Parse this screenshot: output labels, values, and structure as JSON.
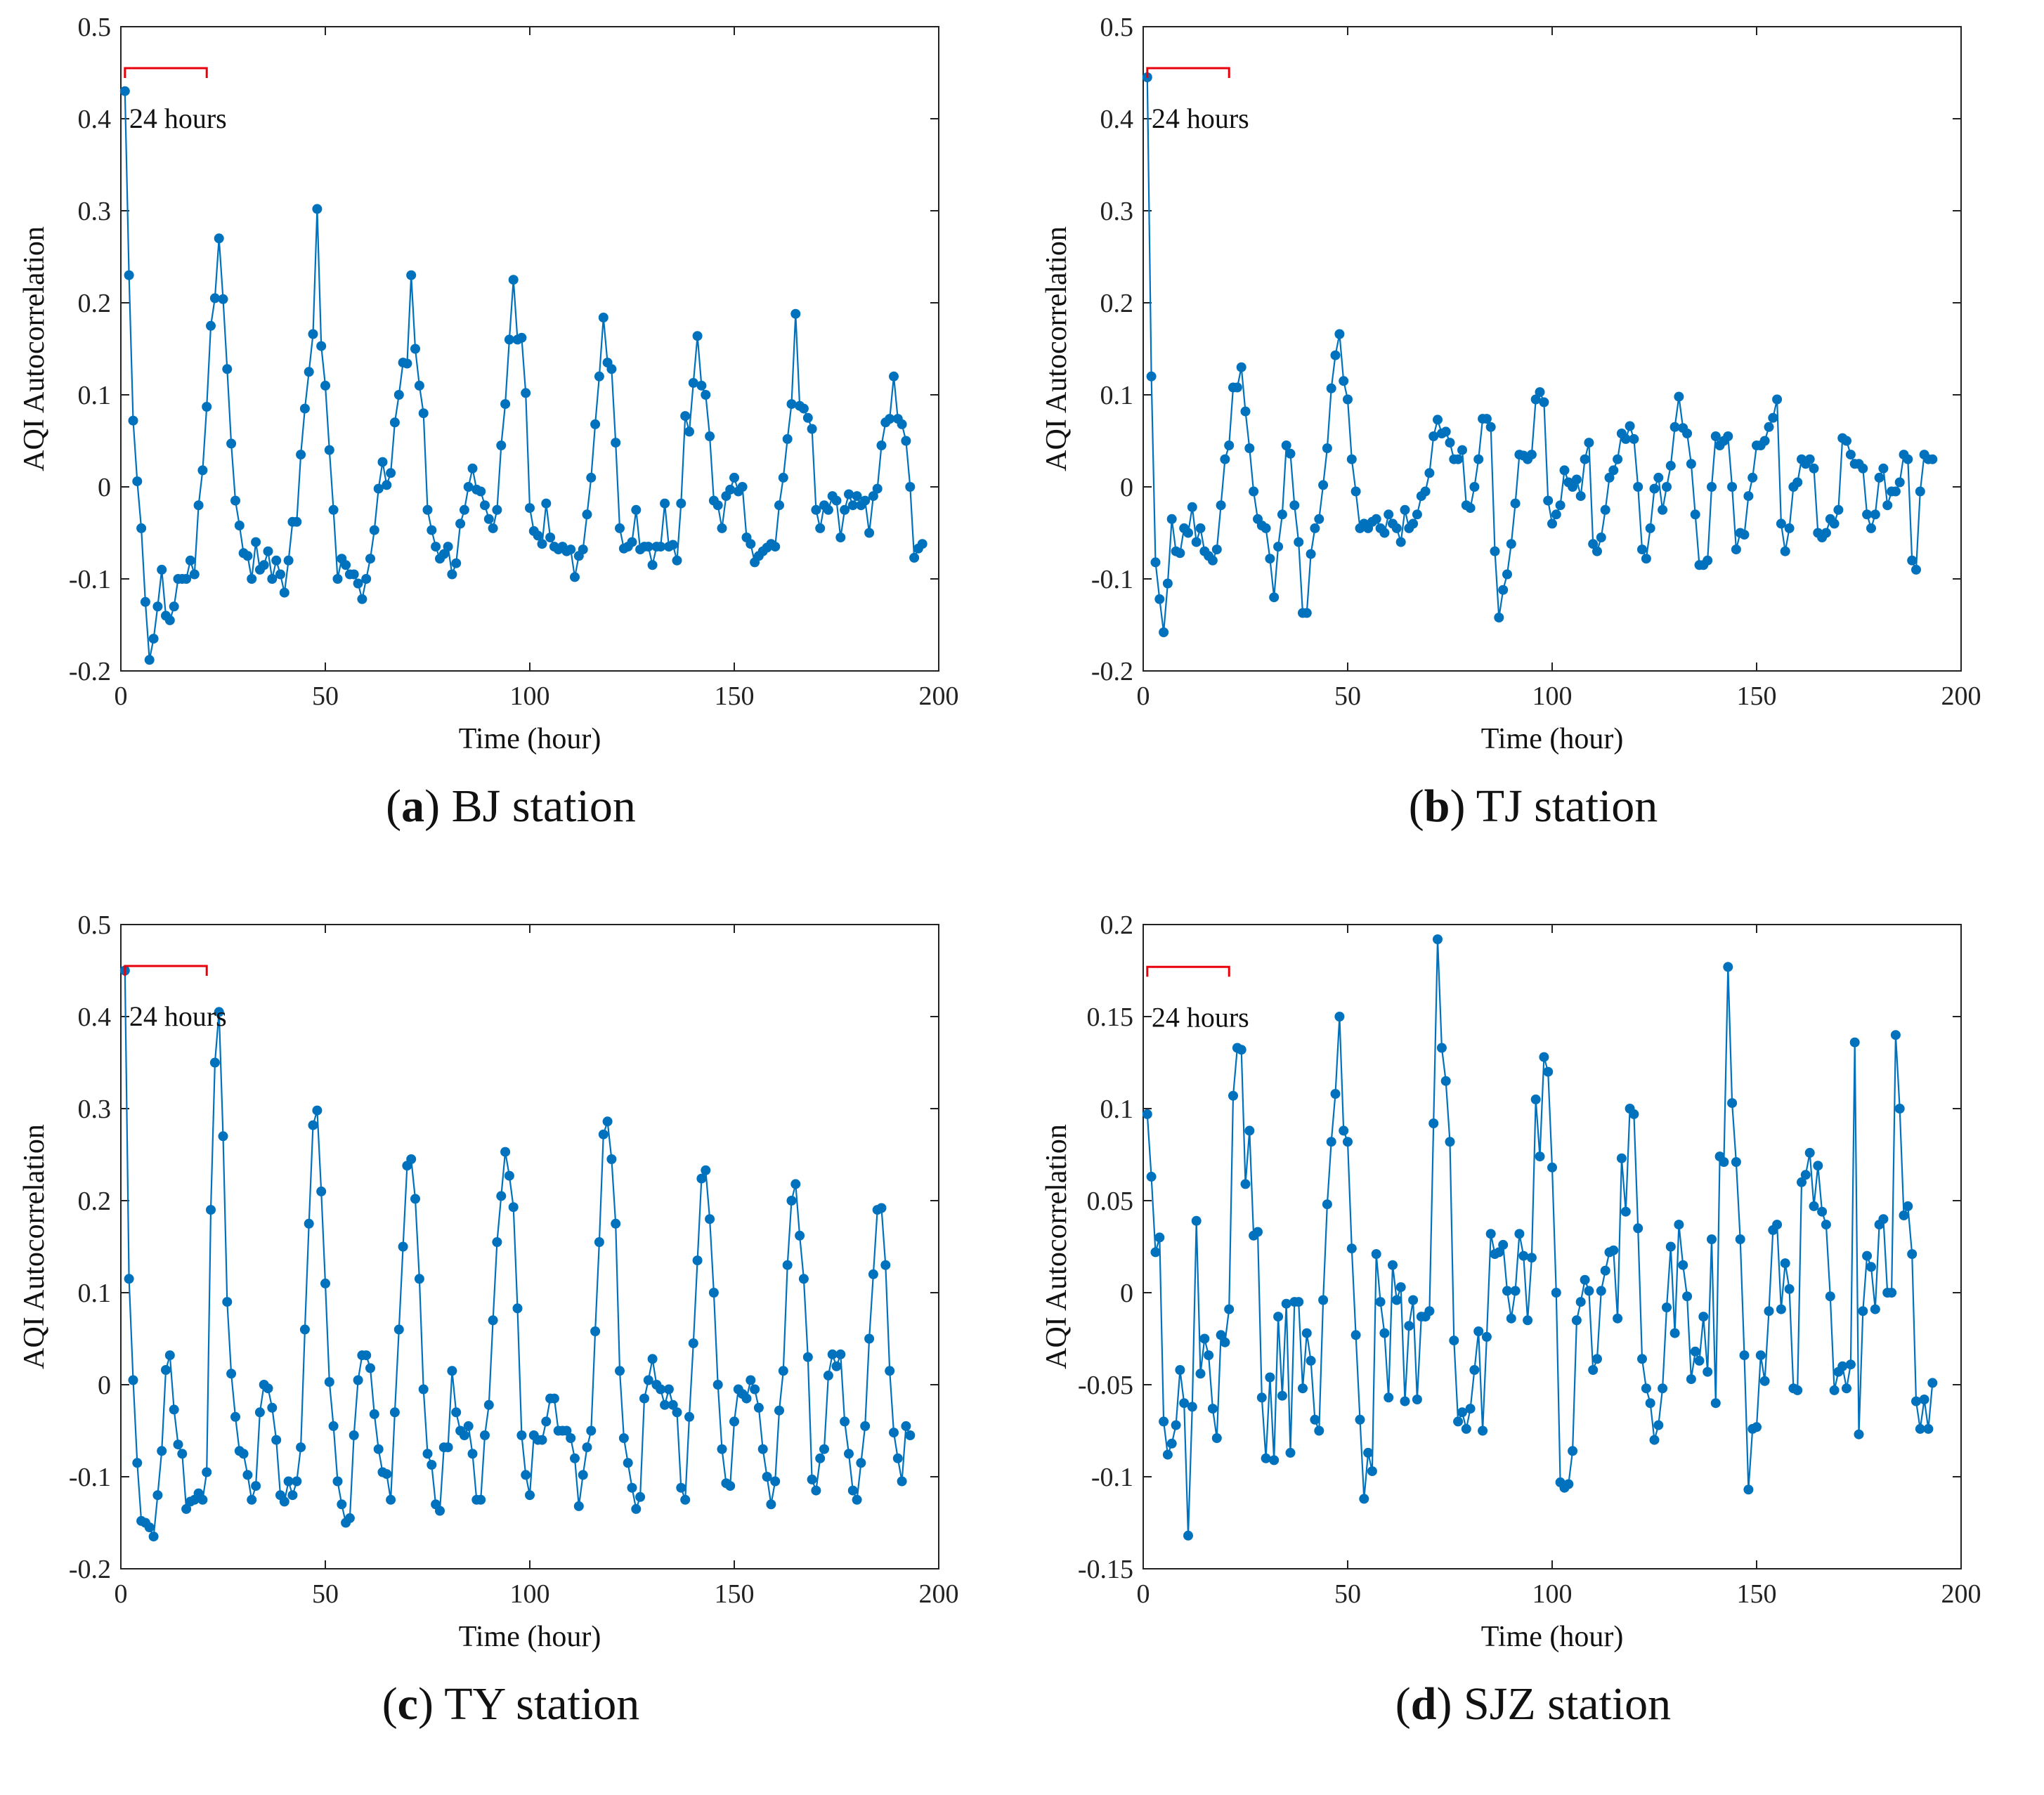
{
  "colors": {
    "series": "#0072BD",
    "annotation": "#E8000B",
    "axis": "#222222"
  },
  "chart_data": [
    {
      "type": "line",
      "caption": {
        "label": "a",
        "text": "BJ station"
      },
      "xlabel": "Time (hour)",
      "ylabel": "AQI Autocorrelation",
      "xlim": [
        0,
        200
      ],
      "ylim": [
        -0.2,
        0.5
      ],
      "xticks": [
        "0",
        "50",
        "100",
        "150",
        "200"
      ],
      "yticks": [
        "-0.2",
        "-0.1",
        "0",
        "0.1",
        "0.2",
        "0.3",
        "0.4",
        "0.5"
      ],
      "annotation": {
        "text": "24  hours",
        "from_x": 1,
        "to_x": 21,
        "y": 0.455
      },
      "series": [
        {
          "values": [
            0.43,
            0.23,
            0.072,
            0.006,
            -0.045,
            -0.125,
            -0.188,
            -0.165,
            -0.13,
            -0.09,
            -0.14,
            -0.145,
            -0.13,
            -0.1,
            -0.1,
            -0.1,
            -0.08,
            -0.095,
            -0.02,
            0.018,
            0.087,
            0.175,
            0.205,
            0.27,
            0.204,
            0.128,
            0.047,
            -0.015,
            -0.042,
            -0.072,
            -0.075,
            -0.1,
            -0.06,
            -0.09,
            -0.085,
            -0.07,
            -0.1,
            -0.08,
            -0.095,
            -0.115,
            -0.08,
            -0.038,
            -0.038,
            0.035,
            0.085,
            0.125,
            0.166,
            0.302,
            0.153,
            0.11,
            0.04,
            -0.025,
            -0.1,
            -0.078,
            -0.085,
            -0.095,
            -0.095,
            -0.105,
            -0.122,
            -0.1,
            -0.078,
            -0.047,
            -0.002,
            0.027,
            0.002,
            0.015,
            0.07,
            0.1,
            0.135,
            0.134,
            0.23,
            0.15,
            0.11,
            0.08,
            -0.025,
            -0.047,
            -0.065,
            -0.078,
            -0.073,
            -0.065,
            -0.095,
            -0.083,
            -0.04,
            -0.025,
            0.0,
            0.02,
            -0.003,
            -0.005,
            -0.02,
            -0.035,
            -0.045,
            -0.025,
            0.045,
            0.09,
            0.16,
            0.225,
            0.16,
            0.162,
            0.102,
            -0.023,
            -0.048,
            -0.053,
            -0.062,
            -0.018,
            -0.055,
            -0.065,
            -0.068,
            -0.065,
            -0.07,
            -0.068,
            -0.098,
            -0.075,
            -0.068,
            -0.03,
            0.01,
            0.068,
            0.12,
            0.184,
            0.135,
            0.128,
            0.048,
            -0.045,
            -0.067,
            -0.065,
            -0.06,
            -0.025,
            -0.068,
            -0.065,
            -0.065,
            -0.085,
            -0.065,
            -0.065,
            -0.018,
            -0.065,
            -0.063,
            -0.08,
            -0.018,
            0.077,
            0.06,
            0.113,
            0.164,
            0.11,
            0.1,
            0.055,
            -0.015,
            -0.02,
            -0.045,
            -0.01,
            -0.003,
            0.01,
            -0.005,
            0.0,
            -0.055,
            -0.062,
            -0.082,
            -0.075,
            -0.07,
            -0.066,
            -0.062,
            -0.065,
            -0.02,
            0.01,
            0.052,
            0.09,
            0.188,
            0.088,
            0.085,
            0.075,
            0.063,
            -0.025,
            -0.045,
            -0.02,
            -0.025,
            -0.01,
            -0.015,
            -0.055,
            -0.025,
            -0.008,
            -0.02,
            -0.01,
            -0.02,
            -0.015,
            -0.05,
            -0.01,
            -0.002,
            0.045,
            0.07,
            0.074,
            0.12,
            0.074,
            0.068,
            0.05,
            0.0,
            -0.077,
            -0.067,
            -0.062
          ]
        }
      ]
    },
    {
      "type": "line",
      "caption": {
        "label": "b",
        "text": "TJ station"
      },
      "xlabel": "Time (hour)",
      "ylabel": "AQI Autocorrelation",
      "xlim": [
        0,
        200
      ],
      "ylim": [
        -0.2,
        0.5
      ],
      "xticks": [
        "0",
        "50",
        "100",
        "150",
        "200"
      ],
      "yticks": [
        "-0.2",
        "-0.1",
        "0",
        "0.1",
        "0.2",
        "0.3",
        "0.4",
        "0.5"
      ],
      "annotation": {
        "text": "24  hours",
        "from_x": 1,
        "to_x": 21,
        "y": 0.455
      },
      "series": [
        {
          "values": [
            0.445,
            0.12,
            -0.082,
            -0.122,
            -0.158,
            -0.105,
            -0.035,
            -0.07,
            -0.072,
            -0.045,
            -0.05,
            -0.022,
            -0.06,
            -0.045,
            -0.07,
            -0.075,
            -0.08,
            -0.068,
            -0.02,
            0.03,
            0.045,
            0.108,
            0.108,
            0.13,
            0.082,
            0.042,
            -0.005,
            -0.035,
            -0.042,
            -0.045,
            -0.078,
            -0.12,
            -0.065,
            -0.03,
            0.045,
            0.036,
            -0.02,
            -0.06,
            -0.137,
            -0.137,
            -0.073,
            -0.045,
            -0.035,
            0.002,
            0.042,
            0.107,
            0.143,
            0.166,
            0.115,
            0.095,
            0.03,
            -0.005,
            -0.045,
            -0.04,
            -0.045,
            -0.038,
            -0.035,
            -0.045,
            -0.05,
            -0.03,
            -0.04,
            -0.045,
            -0.06,
            -0.025,
            -0.045,
            -0.04,
            -0.03,
            -0.01,
            -0.005,
            0.015,
            0.055,
            0.073,
            0.058,
            0.06,
            0.048,
            0.03,
            0.03,
            0.04,
            -0.02,
            -0.023,
            0.0,
            0.03,
            0.074,
            0.074,
            0.065,
            -0.07,
            -0.142,
            -0.112,
            -0.095,
            -0.062,
            -0.018,
            0.035,
            0.034,
            0.03,
            0.035,
            0.095,
            0.103,
            0.092,
            -0.015,
            -0.04,
            -0.03,
            -0.02,
            0.018,
            0.005,
            0.0,
            0.008,
            -0.01,
            0.03,
            0.048,
            -0.062,
            -0.07,
            -0.055,
            -0.025,
            0.01,
            0.018,
            0.03,
            0.058,
            0.052,
            0.066,
            0.052,
            0.0,
            -0.068,
            -0.078,
            -0.045,
            -0.002,
            0.01,
            -0.025,
            0.0,
            0.023,
            0.065,
            0.098,
            0.064,
            0.058,
            0.025,
            -0.03,
            -0.085,
            -0.085,
            -0.08,
            0.0,
            0.055,
            0.045,
            0.05,
            0.055,
            0.0,
            -0.068,
            -0.05,
            -0.052,
            -0.01,
            0.01,
            0.045,
            0.045,
            0.05,
            0.065,
            0.075,
            0.095,
            -0.04,
            -0.07,
            -0.045,
            0.0,
            0.005,
            0.03,
            0.025,
            0.03,
            0.02,
            -0.05,
            -0.055,
            -0.05,
            -0.035,
            -0.04,
            -0.025,
            0.053,
            0.05,
            0.035,
            0.025,
            0.025,
            0.02,
            -0.03,
            -0.045,
            -0.03,
            0.01,
            0.02,
            -0.02,
            -0.005,
            -0.005,
            0.005,
            0.035,
            0.03,
            -0.08,
            -0.09,
            -0.005,
            0.035,
            0.03,
            0.03
          ]
        }
      ]
    },
    {
      "type": "line",
      "caption": {
        "label": "c",
        "text": "TY station"
      },
      "xlabel": "Time (hour)",
      "ylabel": "AQI Autocorrelation",
      "xlim": [
        0,
        200
      ],
      "ylim": [
        -0.2,
        0.5
      ],
      "xticks": [
        "0",
        "50",
        "100",
        "150",
        "200"
      ],
      "yticks": [
        "-0.2",
        "-0.1",
        "0",
        "0.1",
        "0.2",
        "0.3",
        "0.4",
        "0.5"
      ],
      "annotation": {
        "text": "24  hours",
        "from_x": 1,
        "to_x": 21,
        "y": 0.455
      },
      "series": [
        {
          "values": [
            0.45,
            0.115,
            0.005,
            -0.085,
            -0.148,
            -0.15,
            -0.155,
            -0.165,
            -0.12,
            -0.072,
            0.016,
            0.032,
            -0.027,
            -0.065,
            -0.075,
            -0.135,
            -0.127,
            -0.125,
            -0.118,
            -0.125,
            -0.095,
            0.19,
            0.35,
            0.405,
            0.27,
            0.09,
            0.012,
            -0.035,
            -0.072,
            -0.075,
            -0.098,
            -0.125,
            -0.11,
            -0.03,
            0.0,
            -0.004,
            -0.025,
            -0.06,
            -0.12,
            -0.127,
            -0.105,
            -0.12,
            -0.105,
            -0.068,
            0.06,
            0.175,
            0.282,
            0.298,
            0.21,
            0.11,
            0.003,
            -0.045,
            -0.105,
            -0.13,
            -0.15,
            -0.145,
            -0.055,
            0.005,
            0.032,
            0.032,
            0.018,
            -0.032,
            -0.07,
            -0.095,
            -0.097,
            -0.125,
            -0.03,
            0.06,
            0.15,
            0.238,
            0.245,
            0.202,
            0.115,
            -0.005,
            -0.075,
            -0.087,
            -0.13,
            -0.137,
            -0.068,
            -0.068,
            0.015,
            -0.03,
            -0.05,
            -0.055,
            -0.045,
            -0.075,
            -0.125,
            -0.125,
            -0.055,
            -0.022,
            0.07,
            0.155,
            0.205,
            0.253,
            0.227,
            0.193,
            0.083,
            -0.055,
            -0.098,
            -0.12,
            -0.055,
            -0.06,
            -0.06,
            -0.04,
            -0.015,
            -0.015,
            -0.05,
            -0.05,
            -0.05,
            -0.058,
            -0.08,
            -0.132,
            -0.098,
            -0.068,
            -0.05,
            0.058,
            0.155,
            0.272,
            0.286,
            0.245,
            0.175,
            0.015,
            -0.058,
            -0.085,
            -0.112,
            -0.135,
            -0.122,
            -0.015,
            0.005,
            0.028,
            0.0,
            -0.005,
            -0.022,
            -0.005,
            -0.022,
            -0.03,
            -0.112,
            -0.125,
            -0.035,
            0.045,
            0.135,
            0.224,
            0.233,
            0.18,
            0.1,
            0.0,
            -0.07,
            -0.107,
            -0.11,
            -0.04,
            -0.005,
            -0.01,
            -0.015,
            0.005,
            -0.005,
            -0.025,
            -0.07,
            -0.1,
            -0.13,
            -0.105,
            -0.028,
            0.015,
            0.13,
            0.2,
            0.218,
            0.162,
            0.115,
            0.03,
            -0.103,
            -0.115,
            -0.08,
            -0.07,
            0.01,
            0.033,
            0.02,
            0.033,
            -0.04,
            -0.075,
            -0.115,
            -0.125,
            -0.085,
            -0.045,
            0.05,
            0.12,
            0.19,
            0.192,
            0.13,
            0.015,
            -0.052,
            -0.08,
            -0.105,
            -0.045,
            -0.055
          ]
        }
      ]
    },
    {
      "type": "line",
      "caption": {
        "label": "d",
        "text": "SJZ station"
      },
      "xlabel": "Time (hour)",
      "ylabel": "AQI Autocorrelation",
      "xlim": [
        0,
        200
      ],
      "ylim": [
        -0.15,
        0.2
      ],
      "xticks": [
        "0",
        "50",
        "100",
        "150",
        "200"
      ],
      "yticks": [
        "-0.15",
        "-0.1",
        "-0.05",
        "0",
        "0.05",
        "0.1",
        "0.15",
        "0.2"
      ],
      "annotation": {
        "text": "24  hours",
        "from_x": 1,
        "to_x": 21,
        "y": 0.177
      },
      "series": [
        {
          "values": [
            0.097,
            0.063,
            0.022,
            0.03,
            -0.07,
            -0.088,
            -0.082,
            -0.072,
            -0.042,
            -0.06,
            -0.132,
            -0.062,
            0.039,
            -0.044,
            -0.025,
            -0.034,
            -0.063,
            -0.079,
            -0.023,
            -0.027,
            -0.009,
            0.107,
            0.133,
            0.132,
            0.059,
            0.088,
            0.031,
            0.033,
            -0.057,
            -0.09,
            -0.046,
            -0.091,
            -0.013,
            -0.056,
            -0.006,
            -0.087,
            -0.005,
            -0.005,
            -0.052,
            -0.022,
            -0.037,
            -0.069,
            -0.075,
            -0.004,
            0.048,
            0.082,
            0.108,
            0.15,
            0.088,
            0.082,
            0.024,
            -0.023,
            -0.069,
            -0.112,
            -0.087,
            -0.097,
            0.021,
            -0.005,
            -0.022,
            -0.057,
            0.015,
            -0.004,
            0.003,
            -0.059,
            -0.018,
            -0.004,
            -0.058,
            -0.013,
            -0.013,
            -0.01,
            0.092,
            0.192,
            0.133,
            0.115,
            0.082,
            -0.026,
            -0.07,
            -0.065,
            -0.074,
            -0.063,
            -0.042,
            -0.021,
            -0.075,
            -0.024,
            0.032,
            0.021,
            0.022,
            0.026,
            0.001,
            -0.014,
            0.001,
            0.032,
            0.02,
            -0.015,
            0.019,
            0.105,
            0.074,
            0.128,
            0.12,
            0.068,
            0.0,
            -0.103,
            -0.106,
            -0.104,
            -0.086,
            -0.015,
            -0.005,
            0.007,
            0.001,
            -0.042,
            -0.036,
            0.001,
            0.012,
            0.022,
            0.023,
            -0.014,
            0.073,
            0.044,
            0.1,
            0.097,
            0.035,
            -0.036,
            -0.052,
            -0.06,
            -0.08,
            -0.072,
            -0.052,
            -0.008,
            0.025,
            -0.022,
            0.037,
            0.015,
            -0.002,
            -0.047,
            -0.032,
            -0.037,
            -0.013,
            -0.043,
            0.029,
            -0.06,
            0.074,
            0.071,
            0.177,
            0.103,
            0.071,
            0.029,
            -0.034,
            -0.107,
            -0.074,
            -0.073,
            -0.034,
            -0.048,
            -0.01,
            0.034,
            0.037,
            -0.009,
            0.016,
            0.002,
            -0.052,
            -0.053,
            0.06,
            0.064,
            0.076,
            0.047,
            0.069,
            0.044,
            0.037,
            -0.002,
            -0.053,
            -0.043,
            -0.04,
            -0.052,
            -0.039,
            0.136,
            -0.077,
            -0.01,
            0.02,
            0.014,
            -0.009,
            0.037,
            0.04,
            0.0,
            0.0,
            0.14,
            0.1,
            0.042,
            0.047,
            0.021,
            -0.059,
            -0.074,
            -0.058,
            -0.074,
            -0.049
          ]
        }
      ]
    }
  ]
}
